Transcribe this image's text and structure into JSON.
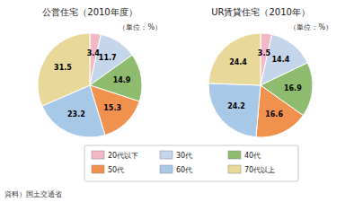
{
  "chart_data": [
    {
      "type": "pie",
      "title": "公営住宅（2010年度）",
      "categories": [
        "20代以下",
        "30代",
        "40代",
        "50代",
        "60代",
        "70代以上"
      ],
      "values": [
        3.4,
        11.7,
        14.9,
        15.3,
        23.2,
        31.5
      ],
      "colors": [
        "#f2b8c6",
        "#c5d5ea",
        "#8fbb6e",
        "#f0924e",
        "#a8c8e8",
        "#e8d89a"
      ],
      "data_labels": true,
      "annotations": [
        "（単位：%）",
        "資料）国土交通省"
      ]
    },
    {
      "type": "pie",
      "title": "UR賃貸住宅（2010年）",
      "categories": [
        "20代以下",
        "30代",
        "40代",
        "50代",
        "60代",
        "70代以上"
      ],
      "values": [
        3.5,
        14.4,
        16.9,
        16.6,
        24.2,
        24.4
      ],
      "colors": [
        "#f2b8c6",
        "#c5d5ea",
        "#8fbb6e",
        "#f0924e",
        "#a8c8e8",
        "#e8d89a"
      ],
      "data_labels": true,
      "annotations": [
        "（単位：%）"
      ]
    }
  ]
}
